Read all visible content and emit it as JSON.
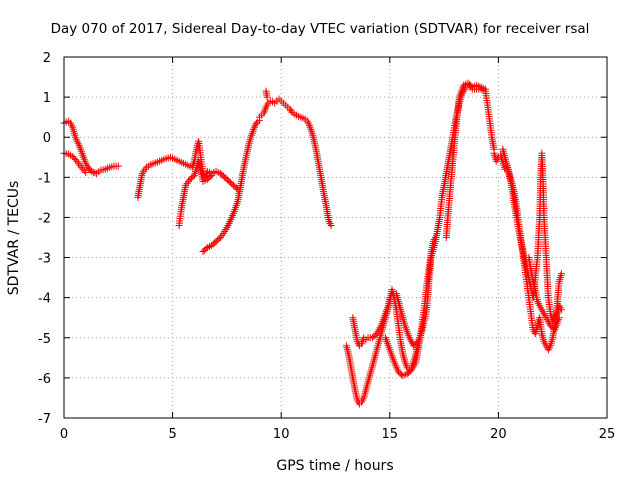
{
  "chart_data": {
    "type": "scatter",
    "title": "Day 070 of 2017, Sidereal Day-to-day VTEC variation (SDTVAR) for receiver rsal",
    "xlabel": "GPS time / hours",
    "ylabel": "SDTVAR / TECUs",
    "xlim": [
      0,
      25
    ],
    "ylim": [
      -7,
      2
    ],
    "xticks": [
      0,
      5,
      10,
      15,
      20,
      25
    ],
    "yticks": [
      -7,
      -6,
      -5,
      -4,
      -3,
      -2,
      -1,
      0,
      1,
      2
    ],
    "grid": true,
    "legend": "none",
    "marker": "+",
    "color": "#ff0000",
    "segments": [
      [
        [
          0.0,
          0.35
        ],
        [
          0.1,
          0.38
        ],
        [
          0.2,
          0.4
        ],
        [
          0.3,
          0.35
        ],
        [
          0.4,
          0.25
        ],
        [
          0.5,
          0.05
        ],
        [
          0.6,
          -0.1
        ],
        [
          0.7,
          -0.2
        ],
        [
          0.8,
          -0.35
        ],
        [
          0.9,
          -0.5
        ],
        [
          1.0,
          -0.65
        ],
        [
          1.1,
          -0.75
        ],
        [
          1.2,
          -0.82
        ],
        [
          1.35,
          -0.88
        ],
        [
          1.5,
          -0.9
        ],
        [
          1.7,
          -0.82
        ],
        [
          1.9,
          -0.8
        ],
        [
          2.1,
          -0.75
        ],
        [
          2.3,
          -0.72
        ],
        [
          2.5,
          -0.72
        ]
      ],
      [
        [
          0.0,
          -0.4
        ],
        [
          0.2,
          -0.42
        ],
        [
          0.4,
          -0.48
        ],
        [
          0.6,
          -0.6
        ],
        [
          0.8,
          -0.75
        ],
        [
          1.0,
          -0.88
        ]
      ],
      [
        [
          3.4,
          -1.5
        ],
        [
          3.5,
          -1.2
        ],
        [
          3.6,
          -0.9
        ],
        [
          3.8,
          -0.75
        ],
        [
          4.0,
          -0.68
        ],
        [
          4.3,
          -0.62
        ],
        [
          4.6,
          -0.55
        ],
        [
          4.9,
          -0.5
        ],
        [
          5.1,
          -0.55
        ],
        [
          5.3,
          -0.6
        ],
        [
          5.5,
          -0.65
        ],
        [
          5.7,
          -0.7
        ],
        [
          5.9,
          -0.75
        ],
        [
          6.0,
          -0.6
        ],
        [
          6.1,
          -0.3
        ],
        [
          6.2,
          -0.1
        ],
        [
          6.3,
          -0.5
        ],
        [
          6.4,
          -0.9
        ],
        [
          6.5,
          -1.0
        ],
        [
          6.6,
          -0.85
        ],
        [
          6.8,
          -0.9
        ],
        [
          7.0,
          -0.85
        ],
        [
          7.2,
          -0.9
        ],
        [
          7.4,
          -1.0
        ],
        [
          7.6,
          -1.1
        ],
        [
          7.8,
          -1.2
        ],
        [
          8.0,
          -1.3
        ]
      ],
      [
        [
          5.3,
          -2.2
        ],
        [
          5.4,
          -1.8
        ],
        [
          5.5,
          -1.5
        ],
        [
          5.6,
          -1.2
        ],
        [
          5.8,
          -1.05
        ],
        [
          6.0,
          -0.95
        ],
        [
          6.2,
          -0.6
        ],
        [
          6.4,
          -1.1
        ],
        [
          6.6,
          -1.05
        ],
        [
          6.8,
          -0.95
        ]
      ],
      [
        [
          6.4,
          -2.85
        ],
        [
          6.6,
          -2.75
        ],
        [
          6.8,
          -2.7
        ],
        [
          7.0,
          -2.6
        ],
        [
          7.2,
          -2.5
        ],
        [
          7.4,
          -2.35
        ],
        [
          7.6,
          -2.15
        ],
        [
          7.8,
          -1.9
        ],
        [
          8.0,
          -1.6
        ],
        [
          8.1,
          -1.3
        ],
        [
          8.2,
          -1.0
        ],
        [
          8.3,
          -0.7
        ],
        [
          8.4,
          -0.45
        ],
        [
          8.5,
          -0.2
        ],
        [
          8.6,
          0.0
        ],
        [
          8.7,
          0.15
        ],
        [
          8.8,
          0.3
        ],
        [
          8.9,
          0.38
        ],
        [
          9.0,
          0.42
        ]
      ],
      [
        [
          9.0,
          0.5
        ],
        [
          9.1,
          0.55
        ],
        [
          9.2,
          0.6
        ],
        [
          9.3,
          0.75
        ],
        [
          9.4,
          0.85
        ],
        [
          9.5,
          0.9
        ],
        [
          9.6,
          0.88
        ],
        [
          9.7,
          0.85
        ],
        [
          9.8,
          0.9
        ],
        [
          9.9,
          0.95
        ],
        [
          10.0,
          0.9
        ],
        [
          10.1,
          0.85
        ],
        [
          10.2,
          0.8
        ],
        [
          10.3,
          0.75
        ],
        [
          10.4,
          0.7
        ],
        [
          10.5,
          0.62
        ],
        [
          10.6,
          0.58
        ],
        [
          10.7,
          0.55
        ],
        [
          10.8,
          0.52
        ],
        [
          10.9,
          0.5
        ],
        [
          11.0,
          0.48
        ],
        [
          11.1,
          0.45
        ],
        [
          11.2,
          0.4
        ],
        [
          11.3,
          0.3
        ],
        [
          11.4,
          0.15
        ],
        [
          11.5,
          -0.05
        ],
        [
          11.6,
          -0.3
        ],
        [
          11.7,
          -0.6
        ],
        [
          11.8,
          -0.9
        ],
        [
          11.9,
          -1.2
        ],
        [
          12.0,
          -1.5
        ],
        [
          12.1,
          -1.8
        ],
        [
          12.2,
          -2.1
        ],
        [
          12.3,
          -2.2
        ]
      ],
      [
        [
          9.3,
          1.15
        ],
        [
          9.35,
          1.0
        ]
      ],
      [
        [
          13.0,
          -5.2
        ],
        [
          13.1,
          -5.4
        ],
        [
          13.2,
          -5.7
        ],
        [
          13.3,
          -6.0
        ],
        [
          13.4,
          -6.3
        ],
        [
          13.5,
          -6.55
        ],
        [
          13.6,
          -6.65
        ],
        [
          13.7,
          -6.6
        ],
        [
          13.8,
          -6.5
        ],
        [
          13.9,
          -6.3
        ],
        [
          14.0,
          -6.1
        ],
        [
          14.1,
          -5.9
        ],
        [
          14.2,
          -5.7
        ],
        [
          14.3,
          -5.5
        ],
        [
          14.4,
          -5.3
        ],
        [
          14.5,
          -5.1
        ],
        [
          14.6,
          -4.9
        ],
        [
          14.7,
          -4.7
        ],
        [
          14.8,
          -4.5
        ],
        [
          14.9,
          -4.3
        ],
        [
          15.0,
          -4.0
        ]
      ],
      [
        [
          13.3,
          -4.5
        ],
        [
          13.4,
          -4.8
        ],
        [
          13.5,
          -5.1
        ],
        [
          13.6,
          -5.2
        ],
        [
          13.7,
          -5.15
        ],
        [
          13.8,
          -5.0
        ],
        [
          13.9,
          -5.05
        ],
        [
          14.0,
          -5.0
        ],
        [
          14.2,
          -5.0
        ],
        [
          14.4,
          -4.9
        ],
        [
          14.6,
          -4.7
        ],
        [
          14.8,
          -4.4
        ],
        [
          15.0,
          -4.1
        ],
        [
          15.1,
          -3.8
        ],
        [
          15.2,
          -4.0
        ],
        [
          15.3,
          -4.3
        ],
        [
          15.4,
          -4.7
        ],
        [
          15.5,
          -5.1
        ],
        [
          15.6,
          -5.4
        ],
        [
          15.7,
          -5.6
        ],
        [
          15.8,
          -5.75
        ],
        [
          15.9,
          -5.8
        ],
        [
          16.0,
          -5.75
        ],
        [
          16.1,
          -5.6
        ],
        [
          16.2,
          -5.4
        ],
        [
          16.3,
          -5.2
        ]
      ],
      [
        [
          14.8,
          -5.0
        ],
        [
          15.0,
          -5.3
        ],
        [
          15.2,
          -5.6
        ],
        [
          15.4,
          -5.85
        ],
        [
          15.6,
          -5.95
        ],
        [
          15.8,
          -5.9
        ],
        [
          16.0,
          -5.8
        ],
        [
          16.2,
          -5.6
        ],
        [
          16.3,
          -5.3
        ],
        [
          16.4,
          -5.0
        ],
        [
          16.5,
          -4.6
        ],
        [
          16.6,
          -4.2
        ],
        [
          16.7,
          -3.7
        ],
        [
          16.8,
          -3.3
        ],
        [
          16.9,
          -2.9
        ],
        [
          17.0,
          -2.6
        ],
        [
          17.1,
          -2.5
        ]
      ],
      [
        [
          15.3,
          -3.9
        ],
        [
          15.5,
          -4.3
        ],
        [
          15.7,
          -4.7
        ],
        [
          15.9,
          -5.0
        ],
        [
          16.1,
          -5.2
        ],
        [
          16.3,
          -5.1
        ],
        [
          16.5,
          -4.8
        ],
        [
          16.7,
          -4.3
        ],
        [
          16.8,
          -3.6
        ],
        [
          16.9,
          -3.0
        ],
        [
          17.0,
          -2.8
        ],
        [
          17.1,
          -2.6
        ],
        [
          17.2,
          -2.3
        ],
        [
          17.3,
          -2.0
        ],
        [
          17.4,
          -1.5
        ],
        [
          17.5,
          -1.2
        ],
        [
          17.6,
          -0.9
        ],
        [
          17.7,
          -0.6
        ],
        [
          17.8,
          -0.3
        ],
        [
          17.9,
          0.0
        ],
        [
          18.0,
          0.35
        ],
        [
          18.1,
          0.6
        ],
        [
          18.2,
          0.85
        ],
        [
          18.3,
          1.05
        ],
        [
          18.4,
          1.15
        ],
        [
          18.5,
          1.25
        ],
        [
          18.6,
          1.3
        ],
        [
          18.7,
          1.25
        ],
        [
          18.8,
          1.2
        ],
        [
          19.0,
          1.2
        ],
        [
          19.2,
          1.2
        ],
        [
          19.4,
          1.15
        ],
        [
          19.5,
          0.8
        ],
        [
          19.6,
          0.4
        ],
        [
          19.7,
          0.0
        ],
        [
          19.8,
          -0.3
        ]
      ],
      [
        [
          17.6,
          -2.5
        ],
        [
          17.7,
          -1.8
        ],
        [
          17.8,
          -1.2
        ],
        [
          17.9,
          -0.6
        ],
        [
          18.0,
          0.0
        ],
        [
          18.1,
          0.5
        ],
        [
          18.2,
          1.0
        ],
        [
          18.4,
          1.3
        ],
        [
          18.6,
          1.35
        ],
        [
          18.8,
          1.25
        ],
        [
          19.0,
          1.3
        ],
        [
          19.2,
          1.25
        ],
        [
          19.4,
          1.2
        ]
      ],
      [
        [
          19.8,
          -0.4
        ],
        [
          19.9,
          -0.6
        ],
        [
          20.0,
          -0.5
        ],
        [
          20.1,
          -0.45
        ],
        [
          20.2,
          -0.6
        ],
        [
          20.3,
          -0.8
        ],
        [
          20.4,
          -0.7
        ],
        [
          20.5,
          -0.9
        ],
        [
          20.6,
          -1.1
        ],
        [
          20.7,
          -1.3
        ],
        [
          20.8,
          -1.6
        ],
        [
          20.9,
          -2.0
        ],
        [
          21.0,
          -2.4
        ],
        [
          21.1,
          -2.8
        ],
        [
          21.2,
          -3.2
        ],
        [
          21.3,
          -3.6
        ],
        [
          21.4,
          -4.0
        ],
        [
          21.5,
          -4.4
        ],
        [
          21.6,
          -4.8
        ],
        [
          21.7,
          -4.9
        ],
        [
          21.8,
          -4.7
        ],
        [
          21.9,
          -4.5
        ],
        [
          22.0,
          -4.9
        ],
        [
          22.1,
          -5.1
        ],
        [
          22.2,
          -5.2
        ],
        [
          22.3,
          -5.3
        ],
        [
          22.4,
          -5.2
        ],
        [
          22.5,
          -5.0
        ],
        [
          22.6,
          -4.7
        ],
        [
          22.7,
          -4.2
        ],
        [
          22.8,
          -3.6
        ],
        [
          22.9,
          -3.4
        ]
      ],
      [
        [
          20.2,
          -0.3
        ],
        [
          20.4,
          -0.7
        ],
        [
          20.6,
          -1.2
        ],
        [
          20.8,
          -1.9
        ],
        [
          21.0,
          -2.5
        ],
        [
          21.2,
          -3.0
        ],
        [
          21.4,
          -3.5
        ],
        [
          21.6,
          -4.0
        ],
        [
          21.8,
          -3.0
        ],
        [
          21.9,
          -2.0
        ],
        [
          21.95,
          -1.0
        ],
        [
          22.0,
          -0.4
        ],
        [
          22.05,
          -1.0
        ],
        [
          22.1,
          -2.0
        ],
        [
          22.2,
          -3.0
        ],
        [
          22.3,
          -4.0
        ],
        [
          22.4,
          -4.4
        ],
        [
          22.5,
          -4.6
        ],
        [
          22.6,
          -4.5
        ],
        [
          22.7,
          -4.4
        ],
        [
          22.8,
          -4.2
        ],
        [
          22.9,
          -4.3
        ]
      ],
      [
        [
          21.4,
          -3.0
        ],
        [
          21.6,
          -3.6
        ],
        [
          21.8,
          -4.1
        ],
        [
          22.0,
          -4.3
        ],
        [
          22.2,
          -4.5
        ],
        [
          22.4,
          -4.7
        ],
        [
          22.6,
          -4.8
        ],
        [
          22.8,
          -4.5
        ]
      ]
    ]
  }
}
